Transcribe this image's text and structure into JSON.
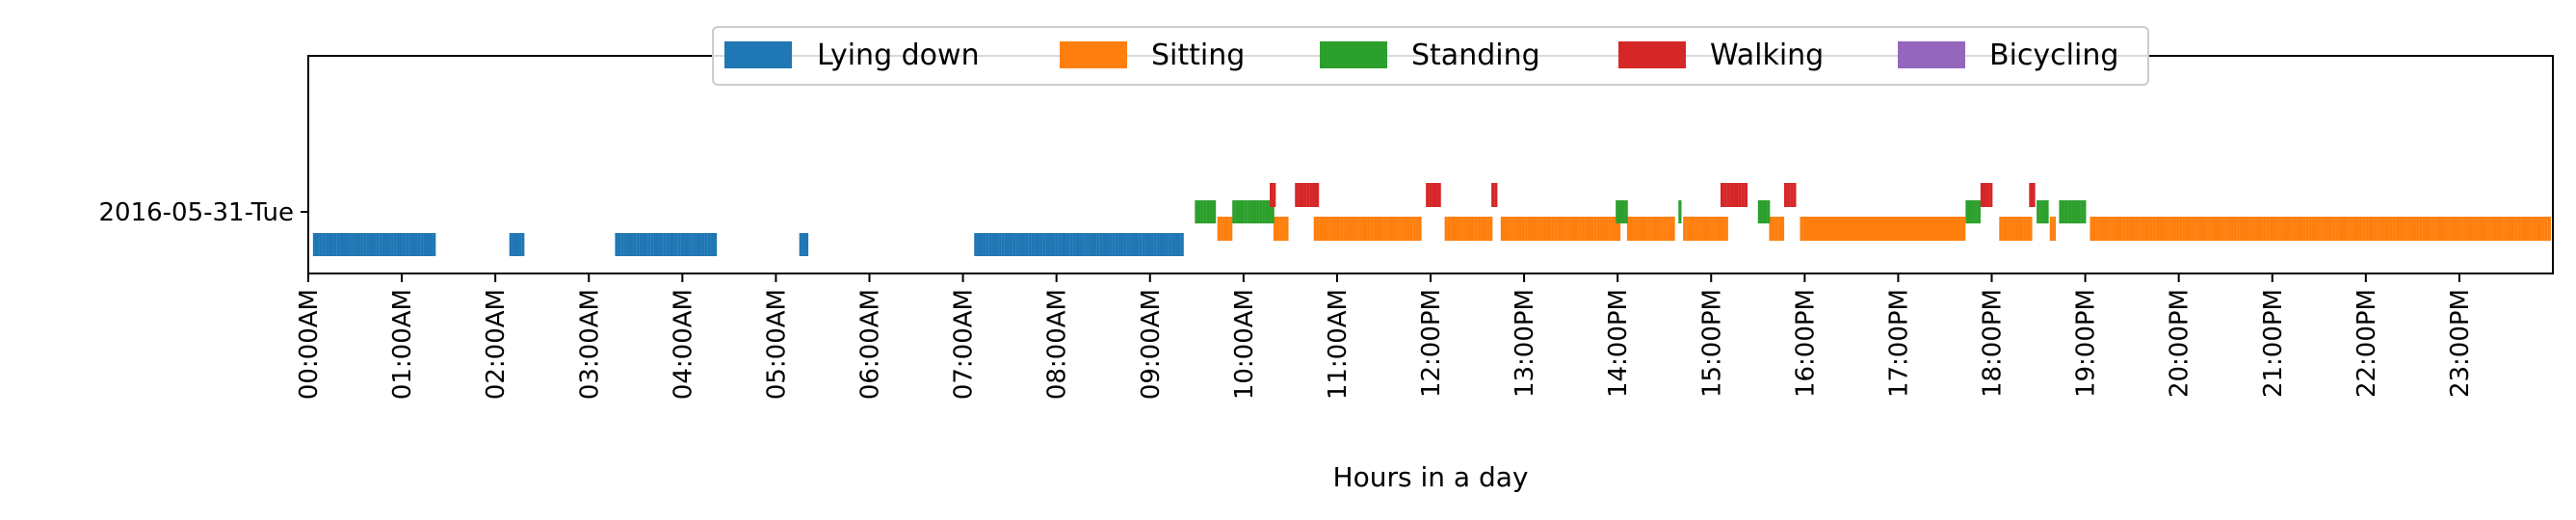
{
  "chart_data": {
    "type": "timeline",
    "xlabel": "Hours in a day",
    "xlim_hours": [
      0,
      24
    ],
    "y_categories": [
      "2016-05-31-Tue"
    ],
    "x_tick_labels": [
      "00:00AM",
      "01:00AM",
      "02:00AM",
      "03:00AM",
      "04:00AM",
      "05:00AM",
      "06:00AM",
      "07:00AM",
      "08:00AM",
      "09:00AM",
      "10:00AM",
      "11:00AM",
      "12:00PM",
      "13:00PM",
      "14:00PM",
      "15:00PM",
      "16:00PM",
      "17:00PM",
      "18:00PM",
      "19:00PM",
      "20:00PM",
      "21:00PM",
      "22:00PM",
      "23:00PM"
    ],
    "legend_position": "top-center",
    "grid": false,
    "series": [
      {
        "name": "Lying down",
        "color": "#1f77b4",
        "intervals_hours": [
          [
            0.05,
            1.35
          ],
          [
            2.15,
            2.28
          ],
          [
            3.28,
            4.35
          ],
          [
            5.25,
            5.32
          ],
          [
            7.12,
            9.35
          ]
        ]
      },
      {
        "name": "Sitting",
        "color": "#ff7f0e",
        "intervals_hours": [
          [
            9.72,
            9.85
          ],
          [
            10.32,
            10.45
          ],
          [
            10.75,
            11.9
          ],
          [
            12.15,
            12.65
          ],
          [
            12.75,
            14.0
          ],
          [
            14.1,
            14.6
          ],
          [
            14.7,
            15.15
          ],
          [
            15.62,
            15.75
          ],
          [
            15.95,
            17.7
          ],
          [
            18.08,
            18.4
          ],
          [
            18.62,
            18.68
          ],
          [
            19.05,
            24.0
          ]
        ]
      },
      {
        "name": "Standing",
        "color": "#2ca02c",
        "intervals_hours": [
          [
            9.48,
            9.68
          ],
          [
            9.88,
            10.3
          ],
          [
            13.98,
            14.08
          ],
          [
            14.65,
            14.68
          ],
          [
            15.5,
            15.6
          ],
          [
            17.72,
            17.85
          ],
          [
            18.48,
            18.6
          ],
          [
            18.72,
            19.0
          ]
        ]
      },
      {
        "name": "Walking",
        "color": "#d62728",
        "intervals_hours": [
          [
            10.28,
            10.32
          ],
          [
            10.55,
            10.8
          ],
          [
            11.95,
            12.1
          ],
          [
            12.65,
            12.7
          ],
          [
            15.1,
            15.38
          ],
          [
            15.78,
            15.9
          ],
          [
            17.88,
            18.0
          ],
          [
            18.4,
            18.45
          ]
        ]
      },
      {
        "name": "Bicycling",
        "color": "#9467bd",
        "intervals_hours": []
      }
    ],
    "solid_intervals": [
      {
        "series": "Sitting",
        "interval_hours": [
          16.0,
          17.72
        ]
      }
    ]
  }
}
